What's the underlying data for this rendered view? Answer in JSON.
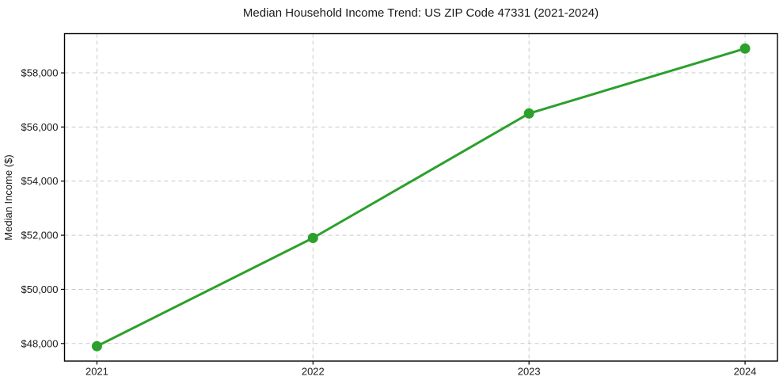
{
  "page": {
    "background": "#ffffff"
  },
  "chart_data": {
    "type": "line",
    "title": "Median Household Income Trend: US ZIP Code 47331 (2021-2024)",
    "xlabel": "",
    "ylabel": "Median Income ($)",
    "x": [
      2021,
      2022,
      2023,
      2024
    ],
    "values": [
      47900,
      51900,
      56500,
      58900
    ],
    "xticks": {
      "values": [
        2021,
        2022,
        2023,
        2024
      ],
      "labels": [
        "2021",
        "2022",
        "2023",
        "2024"
      ]
    },
    "yticks": {
      "values": [
        48000,
        50000,
        52000,
        54000,
        56000,
        58000
      ],
      "labels": [
        "$48,000",
        "$50,000",
        "$52,000",
        "$54,000",
        "$56,000",
        "$58,000"
      ]
    },
    "xlim": [
      2020.85,
      2024.15
    ],
    "ylim": [
      47350,
      59450
    ],
    "grid": true,
    "legend": "none",
    "colors": {
      "line": "#2ca02c",
      "marker": "#2ca02c",
      "grid": "#c9c9c9",
      "axis": "#000000",
      "text": "#1a1a1a"
    },
    "line_width": 3,
    "marker_radius": 6.5
  }
}
